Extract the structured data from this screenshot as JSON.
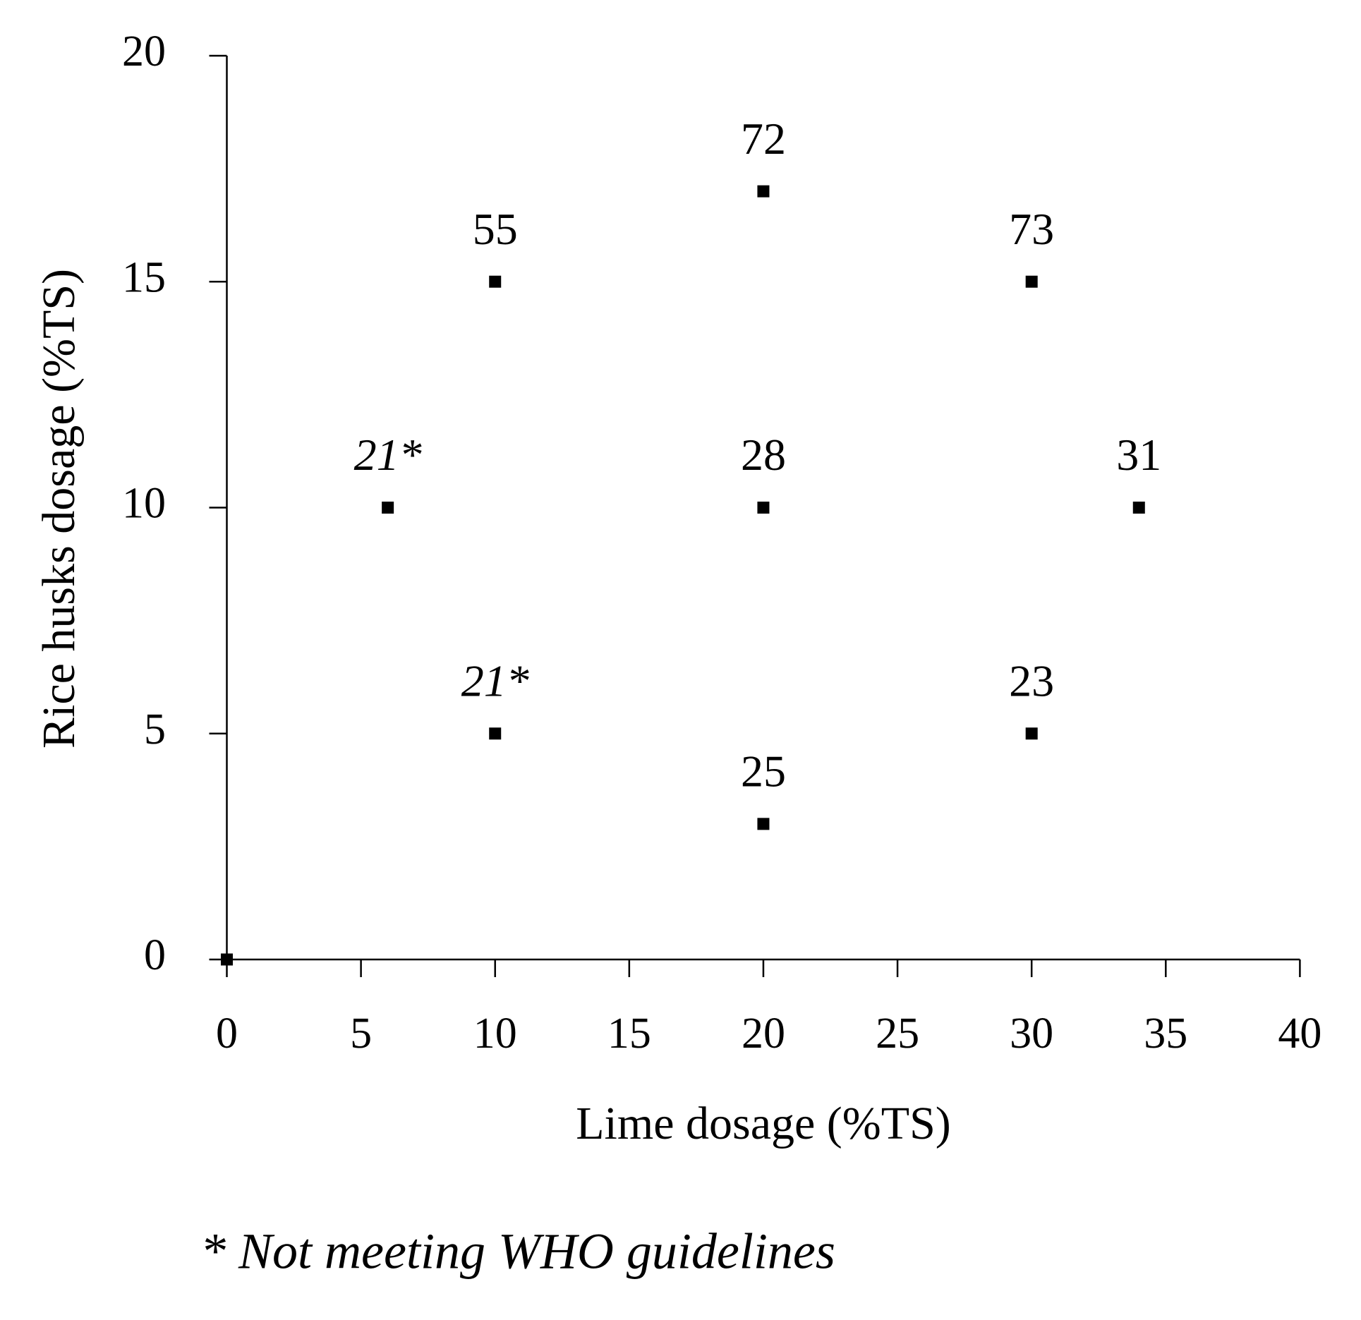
{
  "chart_data": {
    "type": "scatter",
    "x": [
      0,
      6,
      10,
      10,
      20,
      20,
      20,
      30,
      30,
      34
    ],
    "y": [
      0,
      10,
      15,
      5,
      17,
      10,
      3,
      15,
      5,
      10
    ],
    "point_labels": [
      null,
      "21*",
      "55",
      "21*",
      "72",
      "28",
      "25",
      "73",
      "23",
      "31"
    ],
    "color": "#000000",
    "x_label": "Lime dosage (%TS)",
    "y_label": "Rice husks dosage (%TS)",
    "xlim": [
      0,
      40
    ],
    "xticks": [
      0,
      5,
      10,
      15,
      20,
      25,
      30,
      35,
      40
    ],
    "ylim": [
      0,
      20
    ],
    "yticks": [
      0,
      5,
      10,
      15,
      20
    ],
    "grid": false,
    "footnote": "* Not meeting WHO guidelines"
  }
}
